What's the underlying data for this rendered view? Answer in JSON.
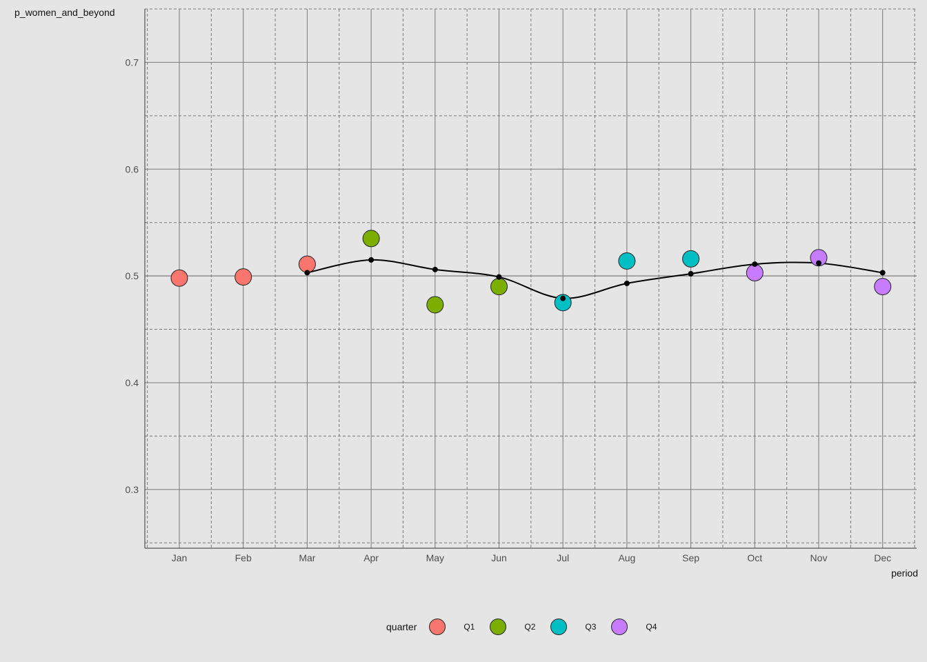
{
  "chart_data": {
    "type": "scatter",
    "xlabel": "period",
    "ylabel": "p_women_and_beyond",
    "categories": [
      "Jan",
      "Feb",
      "Mar",
      "Apr",
      "May",
      "Jun",
      "Jul",
      "Aug",
      "Sep",
      "Oct",
      "Nov",
      "Dec"
    ],
    "ylim": [
      0.245,
      0.75
    ],
    "yticks": [
      0.3,
      0.4,
      0.5,
      0.6,
      0.7
    ],
    "ytick_labels": [
      "0.3",
      "0.4",
      "0.5",
      "0.6",
      "0.7"
    ],
    "grid": true,
    "legend_title": "quarter",
    "legend_position": "bottom",
    "series": [
      {
        "name": "Q1",
        "color": "#f8766d",
        "points": [
          {
            "x": "Jan",
            "y": 0.498
          },
          {
            "x": "Feb",
            "y": 0.499
          },
          {
            "x": "Mar",
            "y": 0.511
          }
        ]
      },
      {
        "name": "Q2",
        "color": "#7cae00",
        "points": [
          {
            "x": "Apr",
            "y": 0.535
          },
          {
            "x": "May",
            "y": 0.473
          },
          {
            "x": "Jun",
            "y": 0.49
          }
        ]
      },
      {
        "name": "Q3",
        "color": "#00bfc4",
        "points": [
          {
            "x": "Jul",
            "y": 0.475
          },
          {
            "x": "Aug",
            "y": 0.514
          },
          {
            "x": "Sep",
            "y": 0.516
          }
        ]
      },
      {
        "name": "Q4",
        "color": "#c77cff",
        "points": [
          {
            "x": "Oct",
            "y": 0.503
          },
          {
            "x": "Nov",
            "y": 0.517
          },
          {
            "x": "Dec",
            "y": 0.49
          }
        ]
      }
    ],
    "trend": {
      "color": "#000000",
      "points": [
        {
          "x": "Mar",
          "y": 0.503
        },
        {
          "x": "Apr",
          "y": 0.515
        },
        {
          "x": "May",
          "y": 0.506
        },
        {
          "x": "Jun",
          "y": 0.499
        },
        {
          "x": "Jul",
          "y": 0.479
        },
        {
          "x": "Aug",
          "y": 0.493
        },
        {
          "x": "Sep",
          "y": 0.502
        },
        {
          "x": "Oct",
          "y": 0.511
        },
        {
          "x": "Nov",
          "y": 0.512
        },
        {
          "x": "Dec",
          "y": 0.503
        }
      ]
    }
  }
}
